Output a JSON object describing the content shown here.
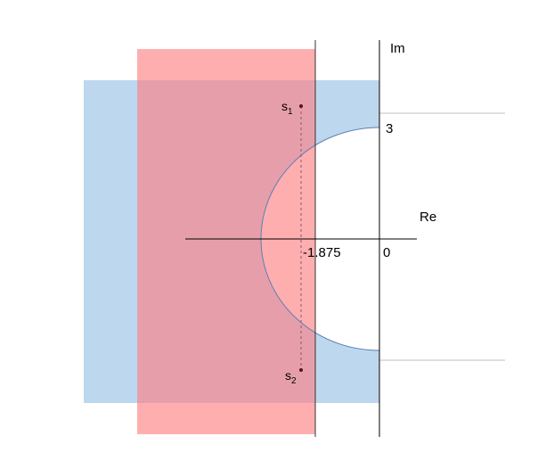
{
  "labels": {
    "imag_axis": "Im",
    "real_axis": "Re",
    "value_3": "3",
    "value_neg": "-1.875",
    "value_0": "0",
    "pole1_base": "s",
    "pole1_sub": "1",
    "pole2_base": "s",
    "pole2_sub": "2"
  },
  "colors": {
    "blue_region": "#bdd7ee",
    "red_region": "#ff7c80",
    "circle_stroke": "#5b7fb8",
    "axis": "#000000",
    "guide_line": "#bfbfbf",
    "pole": "#5a1020",
    "dashed_line": "#8a5a70"
  }
}
